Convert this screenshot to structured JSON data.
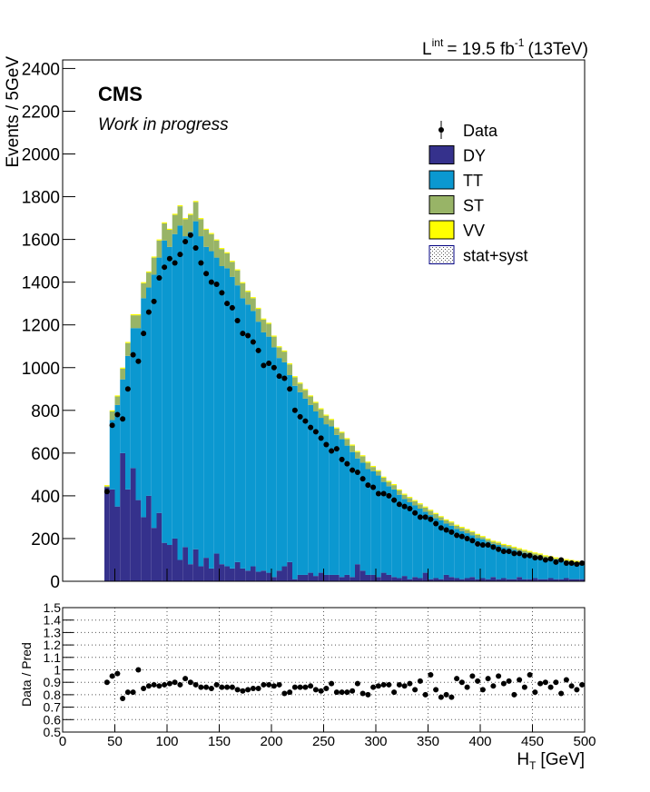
{
  "chart_data": [
    {
      "type": "stacked_histogram",
      "lumi": [
        "L",
        "int",
        "= 19.5 fb",
        "-1",
        "(13TeV)"
      ],
      "experiment": "CMS",
      "subtitle": "Work in progress",
      "y_label": "Events / 5GeV",
      "xlim": [
        0,
        500
      ],
      "ylim": [
        0,
        2440
      ],
      "yticks": [
        0,
        200,
        400,
        600,
        800,
        1000,
        1200,
        1400,
        1600,
        1800,
        2000,
        2200,
        2400
      ],
      "bins": [
        40,
        45,
        50,
        55,
        60,
        65,
        70,
        75,
        80,
        85,
        90,
        95,
        100,
        105,
        110,
        115,
        120,
        125,
        130,
        135,
        140,
        145,
        150,
        155,
        160,
        165,
        170,
        175,
        180,
        185,
        190,
        195,
        200,
        205,
        210,
        215,
        220,
        225,
        230,
        235,
        240,
        245,
        250,
        255,
        260,
        265,
        270,
        275,
        280,
        285,
        290,
        295,
        300,
        305,
        310,
        315,
        320,
        325,
        330,
        335,
        340,
        345,
        350,
        355,
        360,
        365,
        370,
        375,
        380,
        385,
        390,
        395,
        400,
        405,
        410,
        415,
        420,
        425,
        430,
        435,
        440,
        445,
        450,
        455,
        460,
        465,
        470,
        475,
        480,
        485,
        490,
        495,
        500
      ],
      "series": [
        {
          "name": "DY",
          "color": "#35318c",
          "values": [
            440,
            430,
            350,
            600,
            430,
            530,
            380,
            300,
            400,
            250,
            320,
            180,
            170,
            200,
            100,
            160,
            80,
            150,
            70,
            110,
            60,
            130,
            80,
            70,
            60,
            90,
            60,
            50,
            70,
            45,
            50,
            40,
            20,
            50,
            70,
            90,
            10,
            30,
            30,
            40,
            25,
            40,
            30,
            30,
            30,
            20,
            30,
            20,
            80,
            50,
            30,
            30,
            20,
            40,
            30,
            20,
            15,
            25,
            10,
            20,
            15,
            40,
            10,
            15,
            10,
            30,
            20,
            15,
            10,
            15,
            20,
            10,
            15,
            10,
            20,
            10,
            15,
            10,
            10,
            20,
            10,
            10,
            15,
            10,
            10,
            15,
            10,
            10,
            15,
            10,
            10,
            10
          ]
        },
        {
          "name": "TT",
          "color": "#0b98d0",
          "values": [
            0,
            325,
            475,
            345,
            625,
            655,
            805,
            1025,
            975,
            1185,
            1195,
            1415,
            1395,
            1425,
            1565,
            1455,
            1555,
            1535,
            1545,
            1455,
            1485,
            1385,
            1395,
            1395,
            1365,
            1295,
            1265,
            1245,
            1195,
            1170,
            1115,
            1105,
            1075,
            995,
            955,
            875,
            905,
            855,
            825,
            785,
            770,
            725,
            705,
            695,
            655,
            645,
            605,
            585,
            495,
            505,
            495,
            485,
            475,
            425,
            415,
            410,
            390,
            360,
            360,
            335,
            325,
            285,
            300,
            280,
            275,
            240,
            240,
            230,
            225,
            210,
            195,
            192,
            182,
            175,
            155,
            160,
            145,
            145,
            137,
            120,
            123,
            117,
            105,
            105,
            97,
            88,
            92,
            88,
            79,
            80,
            76,
            72
          ]
        },
        {
          "name": "ST",
          "color": "#98b467",
          "values": [
            5,
            40,
            40,
            50,
            60,
            60,
            60,
            70,
            70,
            80,
            80,
            80,
            80,
            90,
            90,
            80,
            80,
            90,
            80,
            80,
            80,
            80,
            80,
            70,
            70,
            70,
            70,
            60,
            60,
            60,
            60,
            60,
            50,
            50,
            50,
            50,
            40,
            40,
            40,
            40,
            40,
            40,
            40,
            30,
            30,
            30,
            30,
            30,
            30,
            30,
            30,
            20,
            20,
            20,
            20,
            20,
            20,
            20,
            20,
            20,
            20,
            20,
            20,
            20,
            15,
            15,
            15,
            15,
            15,
            15,
            15,
            15,
            10,
            10,
            10,
            10,
            10,
            10,
            10,
            10,
            10,
            10,
            10,
            10,
            10,
            10,
            5,
            5,
            5,
            5,
            5,
            5
          ]
        },
        {
          "name": "VV",
          "color": "#ffff00",
          "values": [
            5,
            5,
            5,
            5,
            5,
            5,
            5,
            5,
            5,
            5,
            5,
            5,
            5,
            5,
            5,
            5,
            5,
            5,
            5,
            5,
            5,
            5,
            5,
            5,
            5,
            5,
            5,
            5,
            5,
            5,
            5,
            5,
            5,
            5,
            5,
            5,
            5,
            5,
            5,
            5,
            5,
            5,
            5,
            5,
            5,
            5,
            5,
            5,
            5,
            5,
            5,
            5,
            5,
            5,
            5,
            5,
            5,
            5,
            5,
            5,
            5,
            5,
            5,
            5,
            5,
            5,
            5,
            5,
            5,
            5,
            5,
            5,
            5,
            5,
            5,
            5,
            5,
            5,
            5,
            5,
            5,
            5,
            5,
            5,
            5,
            5,
            5,
            5,
            5,
            5,
            5,
            5
          ]
        }
      ],
      "data_series": {
        "name": "Data",
        "color": "#000000",
        "values": [
          420,
          730,
          780,
          760,
          900,
          1060,
          1030,
          1160,
          1260,
          1310,
          1420,
          1470,
          1510,
          1490,
          1530,
          1590,
          1620,
          1560,
          1490,
          1440,
          1400,
          1390,
          1350,
          1300,
          1280,
          1220,
          1160,
          1150,
          1120,
          1080,
          1010,
          1020,
          1000,
          960,
          950,
          900,
          800,
          770,
          750,
          720,
          700,
          670,
          640,
          610,
          620,
          570,
          550,
          520,
          510,
          480,
          450,
          440,
          410,
          410,
          400,
          380,
          360,
          350,
          340,
          320,
          300,
          300,
          290,
          270,
          250,
          240,
          230,
          215,
          210,
          200,
          190,
          175,
          170,
          170,
          160,
          150,
          140,
          140,
          130,
          130,
          120,
          120,
          110,
          110,
          100,
          105,
          90,
          100,
          85,
          85,
          80,
          85
        ]
      },
      "uncertainty": {
        "name": "stat+syst"
      }
    },
    {
      "type": "ratio",
      "y_label": "Data / Pred",
      "x_label": [
        "H",
        "T",
        "[GeV]"
      ],
      "xlim": [
        0,
        500
      ],
      "xticks": [
        0,
        50,
        100,
        150,
        200,
        250,
        300,
        350,
        400,
        450,
        500
      ],
      "ylim": [
        0.5,
        1.5
      ],
      "yticks": [
        0.5,
        0.6,
        0.7,
        0.8,
        0.9,
        1,
        1.1,
        1.2,
        1.3,
        1.4,
        1.5
      ],
      "grid": true,
      "values": [
        0.9,
        0.95,
        0.97,
        0.77,
        0.82,
        0.82,
        1.0,
        0.85,
        0.87,
        0.88,
        0.87,
        0.88,
        0.89,
        0.9,
        0.88,
        0.93,
        0.9,
        0.88,
        0.86,
        0.86,
        0.85,
        0.88,
        0.86,
        0.86,
        0.86,
        0.84,
        0.83,
        0.84,
        0.85,
        0.85,
        0.88,
        0.88,
        0.87,
        0.88,
        0.81,
        0.82,
        0.86,
        0.86,
        0.86,
        0.87,
        0.84,
        0.83,
        0.85,
        0.89,
        0.82,
        0.82,
        0.82,
        0.83,
        0.89,
        0.81,
        0.8,
        0.86,
        0.87,
        0.88,
        0.88,
        0.82,
        0.88,
        0.87,
        0.89,
        0.84,
        0.91,
        0.8,
        0.96,
        0.84,
        0.78,
        0.8,
        0.78,
        0.93,
        0.9,
        0.86,
        0.95,
        0.91,
        0.84,
        0.93,
        0.87,
        0.95,
        0.89,
        0.91,
        0.8,
        0.92,
        0.86,
        0.96,
        0.82,
        0.89,
        0.9,
        0.86,
        0.9,
        0.81,
        0.92,
        0.87,
        0.84,
        0.88
      ]
    }
  ]
}
